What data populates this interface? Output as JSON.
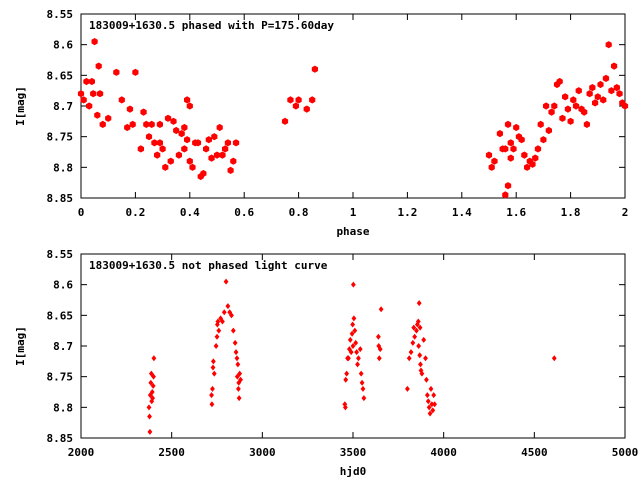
{
  "chart_data": [
    {
      "type": "scatter",
      "title": "183009+1630.5 phased with P=175.60day",
      "xlabel": "phase",
      "ylabel": "I[mag]",
      "xlim": [
        0,
        2
      ],
      "ylim": [
        8.55,
        8.85
      ],
      "y_inverted": true,
      "xticks": [
        "0",
        "0.2",
        "0.4",
        "0.6",
        "0.8",
        "1",
        "1.2",
        "1.4",
        "1.6",
        "1.8",
        "2"
      ],
      "yticks": [
        "8.55",
        "8.6",
        "8.65",
        "8.7",
        "8.75",
        "8.8",
        "8.85"
      ],
      "marker": "filled-hexagon",
      "color": "#ff0000",
      "points": [
        [
          0.0,
          8.68
        ],
        [
          0.01,
          8.69
        ],
        [
          0.02,
          8.66
        ],
        [
          0.03,
          8.7
        ],
        [
          0.04,
          8.66
        ],
        [
          0.045,
          8.68
        ],
        [
          0.05,
          8.595
        ],
        [
          0.06,
          8.715
        ],
        [
          0.065,
          8.635
        ],
        [
          0.07,
          8.68
        ],
        [
          0.08,
          8.73
        ],
        [
          0.1,
          8.72
        ],
        [
          0.13,
          8.645
        ],
        [
          0.15,
          8.69
        ],
        [
          0.17,
          8.735
        ],
        [
          0.19,
          8.73
        ],
        [
          0.18,
          8.705
        ],
        [
          0.2,
          8.645
        ],
        [
          0.22,
          8.77
        ],
        [
          0.23,
          8.71
        ],
        [
          0.24,
          8.73
        ],
        [
          0.25,
          8.75
        ],
        [
          0.26,
          8.73
        ],
        [
          0.27,
          8.76
        ],
        [
          0.28,
          8.78
        ],
        [
          0.29,
          8.73
        ],
        [
          0.29,
          8.76
        ],
        [
          0.3,
          8.77
        ],
        [
          0.31,
          8.8
        ],
        [
          0.32,
          8.72
        ],
        [
          0.33,
          8.79
        ],
        [
          0.34,
          8.725
        ],
        [
          0.35,
          8.74
        ],
        [
          0.36,
          8.78
        ],
        [
          0.37,
          8.745
        ],
        [
          0.38,
          8.735
        ],
        [
          0.38,
          8.77
        ],
        [
          0.39,
          8.69
        ],
        [
          0.39,
          8.755
        ],
        [
          0.4,
          8.7
        ],
        [
          0.4,
          8.79
        ],
        [
          0.41,
          8.8
        ],
        [
          0.42,
          8.76
        ],
        [
          0.43,
          8.76
        ],
        [
          0.44,
          8.815
        ],
        [
          0.45,
          8.81
        ],
        [
          0.46,
          8.77
        ],
        [
          0.47,
          8.755
        ],
        [
          0.48,
          8.785
        ],
        [
          0.49,
          8.75
        ],
        [
          0.5,
          8.78
        ],
        [
          0.51,
          8.735
        ],
        [
          0.52,
          8.78
        ],
        [
          0.53,
          8.77
        ],
        [
          0.54,
          8.76
        ],
        [
          0.55,
          8.805
        ],
        [
          0.56,
          8.79
        ],
        [
          0.57,
          8.76
        ],
        [
          0.75,
          8.725
        ],
        [
          0.77,
          8.69
        ],
        [
          0.79,
          8.7
        ],
        [
          0.8,
          8.69
        ],
        [
          0.83,
          8.705
        ],
        [
          0.85,
          8.69
        ],
        [
          0.86,
          8.64
        ],
        [
          1.5,
          8.78
        ],
        [
          1.51,
          8.8
        ],
        [
          1.52,
          8.79
        ],
        [
          1.54,
          8.745
        ],
        [
          1.55,
          8.77
        ],
        [
          1.56,
          8.77
        ],
        [
          1.56,
          8.845
        ],
        [
          1.57,
          8.83
        ],
        [
          1.57,
          8.73
        ],
        [
          1.58,
          8.76
        ],
        [
          1.58,
          8.785
        ],
        [
          1.59,
          8.77
        ],
        [
          1.6,
          8.735
        ],
        [
          1.61,
          8.75
        ],
        [
          1.62,
          8.755
        ],
        [
          1.63,
          8.78
        ],
        [
          1.64,
          8.8
        ],
        [
          1.65,
          8.79
        ],
        [
          1.66,
          8.795
        ],
        [
          1.67,
          8.785
        ],
        [
          1.68,
          8.77
        ],
        [
          1.69,
          8.73
        ],
        [
          1.7,
          8.755
        ],
        [
          1.71,
          8.7
        ],
        [
          1.72,
          8.74
        ],
        [
          1.73,
          8.71
        ],
        [
          1.74,
          8.7
        ],
        [
          1.75,
          8.665
        ],
        [
          1.76,
          8.66
        ],
        [
          1.77,
          8.72
        ],
        [
          1.78,
          8.685
        ],
        [
          1.79,
          8.705
        ],
        [
          1.8,
          8.725
        ],
        [
          1.81,
          8.69
        ],
        [
          1.82,
          8.7
        ],
        [
          1.83,
          8.675
        ],
        [
          1.84,
          8.705
        ],
        [
          1.85,
          8.71
        ],
        [
          1.86,
          8.73
        ],
        [
          1.87,
          8.68
        ],
        [
          1.88,
          8.67
        ],
        [
          1.89,
          8.695
        ],
        [
          1.9,
          8.685
        ],
        [
          1.91,
          8.665
        ],
        [
          1.92,
          8.69
        ],
        [
          1.93,
          8.655
        ],
        [
          1.94,
          8.6
        ],
        [
          1.95,
          8.675
        ],
        [
          1.96,
          8.635
        ],
        [
          1.97,
          8.67
        ],
        [
          1.98,
          8.68
        ],
        [
          1.99,
          8.695
        ],
        [
          2.0,
          8.7
        ]
      ]
    },
    {
      "type": "scatter",
      "title": "183009+1630.5 not phased light curve",
      "xlabel": "hjd0",
      "ylabel": "I[mag]",
      "xlim": [
        2000,
        5000
      ],
      "ylim": [
        8.55,
        8.85
      ],
      "y_inverted": true,
      "xticks": [
        "2000",
        "2500",
        "3000",
        "3500",
        "4000",
        "4500",
        "5000"
      ],
      "yticks": [
        "8.55",
        "8.6",
        "8.65",
        "8.7",
        "8.75",
        "8.8",
        "8.85"
      ],
      "marker": "small-diamond",
      "color": "#ff0000",
      "points": [
        [
          2375,
          8.8
        ],
        [
          2378,
          8.815
        ],
        [
          2380,
          8.84
        ],
        [
          2382,
          8.78
        ],
        [
          2385,
          8.76
        ],
        [
          2388,
          8.745
        ],
        [
          2390,
          8.79
        ],
        [
          2393,
          8.775
        ],
        [
          2395,
          8.785
        ],
        [
          2398,
          8.765
        ],
        [
          2400,
          8.75
        ],
        [
          2402,
          8.72
        ],
        [
          2720,
          8.78
        ],
        [
          2722,
          8.795
        ],
        [
          2725,
          8.77
        ],
        [
          2728,
          8.735
        ],
        [
          2730,
          8.725
        ],
        [
          2735,
          8.745
        ],
        [
          2745,
          8.7
        ],
        [
          2750,
          8.685
        ],
        [
          2752,
          8.665
        ],
        [
          2755,
          8.66
        ],
        [
          2760,
          8.675
        ],
        [
          2770,
          8.655
        ],
        [
          2780,
          8.66
        ],
        [
          2790,
          8.645
        ],
        [
          2800,
          8.595
        ],
        [
          2810,
          8.635
        ],
        [
          2820,
          8.645
        ],
        [
          2830,
          8.65
        ],
        [
          2840,
          8.675
        ],
        [
          2850,
          8.695
        ],
        [
          2855,
          8.71
        ],
        [
          2860,
          8.72
        ],
        [
          2862,
          8.75
        ],
        [
          2865,
          8.73
        ],
        [
          2868,
          8.77
        ],
        [
          2870,
          8.76
        ],
        [
          2872,
          8.785
        ],
        [
          2875,
          8.745
        ],
        [
          2880,
          8.755
        ],
        [
          3455,
          8.795
        ],
        [
          3458,
          8.8
        ],
        [
          3460,
          8.755
        ],
        [
          3465,
          8.745
        ],
        [
          3470,
          8.72
        ],
        [
          3475,
          8.72
        ],
        [
          3480,
          8.705
        ],
        [
          3485,
          8.69
        ],
        [
          3490,
          8.71
        ],
        [
          3495,
          8.68
        ],
        [
          3498,
          8.665
        ],
        [
          3500,
          8.7
        ],
        [
          3502,
          8.6
        ],
        [
          3505,
          8.655
        ],
        [
          3510,
          8.675
        ],
        [
          3515,
          8.695
        ],
        [
          3520,
          8.71
        ],
        [
          3525,
          8.73
        ],
        [
          3530,
          8.72
        ],
        [
          3540,
          8.705
        ],
        [
          3545,
          8.745
        ],
        [
          3550,
          8.76
        ],
        [
          3555,
          8.77
        ],
        [
          3560,
          8.785
        ],
        [
          3640,
          8.685
        ],
        [
          3642,
          8.7
        ],
        [
          3645,
          8.72
        ],
        [
          3650,
          8.705
        ],
        [
          3655,
          8.64
        ],
        [
          3800,
          8.77
        ],
        [
          3810,
          8.72
        ],
        [
          3820,
          8.71
        ],
        [
          3830,
          8.695
        ],
        [
          3835,
          8.67
        ],
        [
          3840,
          8.685
        ],
        [
          3850,
          8.675
        ],
        [
          3855,
          8.665
        ],
        [
          3860,
          8.66
        ],
        [
          3862,
          8.7
        ],
        [
          3865,
          8.63
        ],
        [
          3868,
          8.715
        ],
        [
          3870,
          8.67
        ],
        [
          3872,
          8.73
        ],
        [
          3875,
          8.74
        ],
        [
          3880,
          8.745
        ],
        [
          3890,
          8.69
        ],
        [
          3900,
          8.72
        ],
        [
          3905,
          8.755
        ],
        [
          3910,
          8.78
        ],
        [
          3915,
          8.79
        ],
        [
          3920,
          8.8
        ],
        [
          3925,
          8.81
        ],
        [
          3930,
          8.77
        ],
        [
          3935,
          8.795
        ],
        [
          3940,
          8.805
        ],
        [
          3945,
          8.78
        ],
        [
          3950,
          8.795
        ],
        [
          4610,
          8.72
        ]
      ]
    }
  ]
}
